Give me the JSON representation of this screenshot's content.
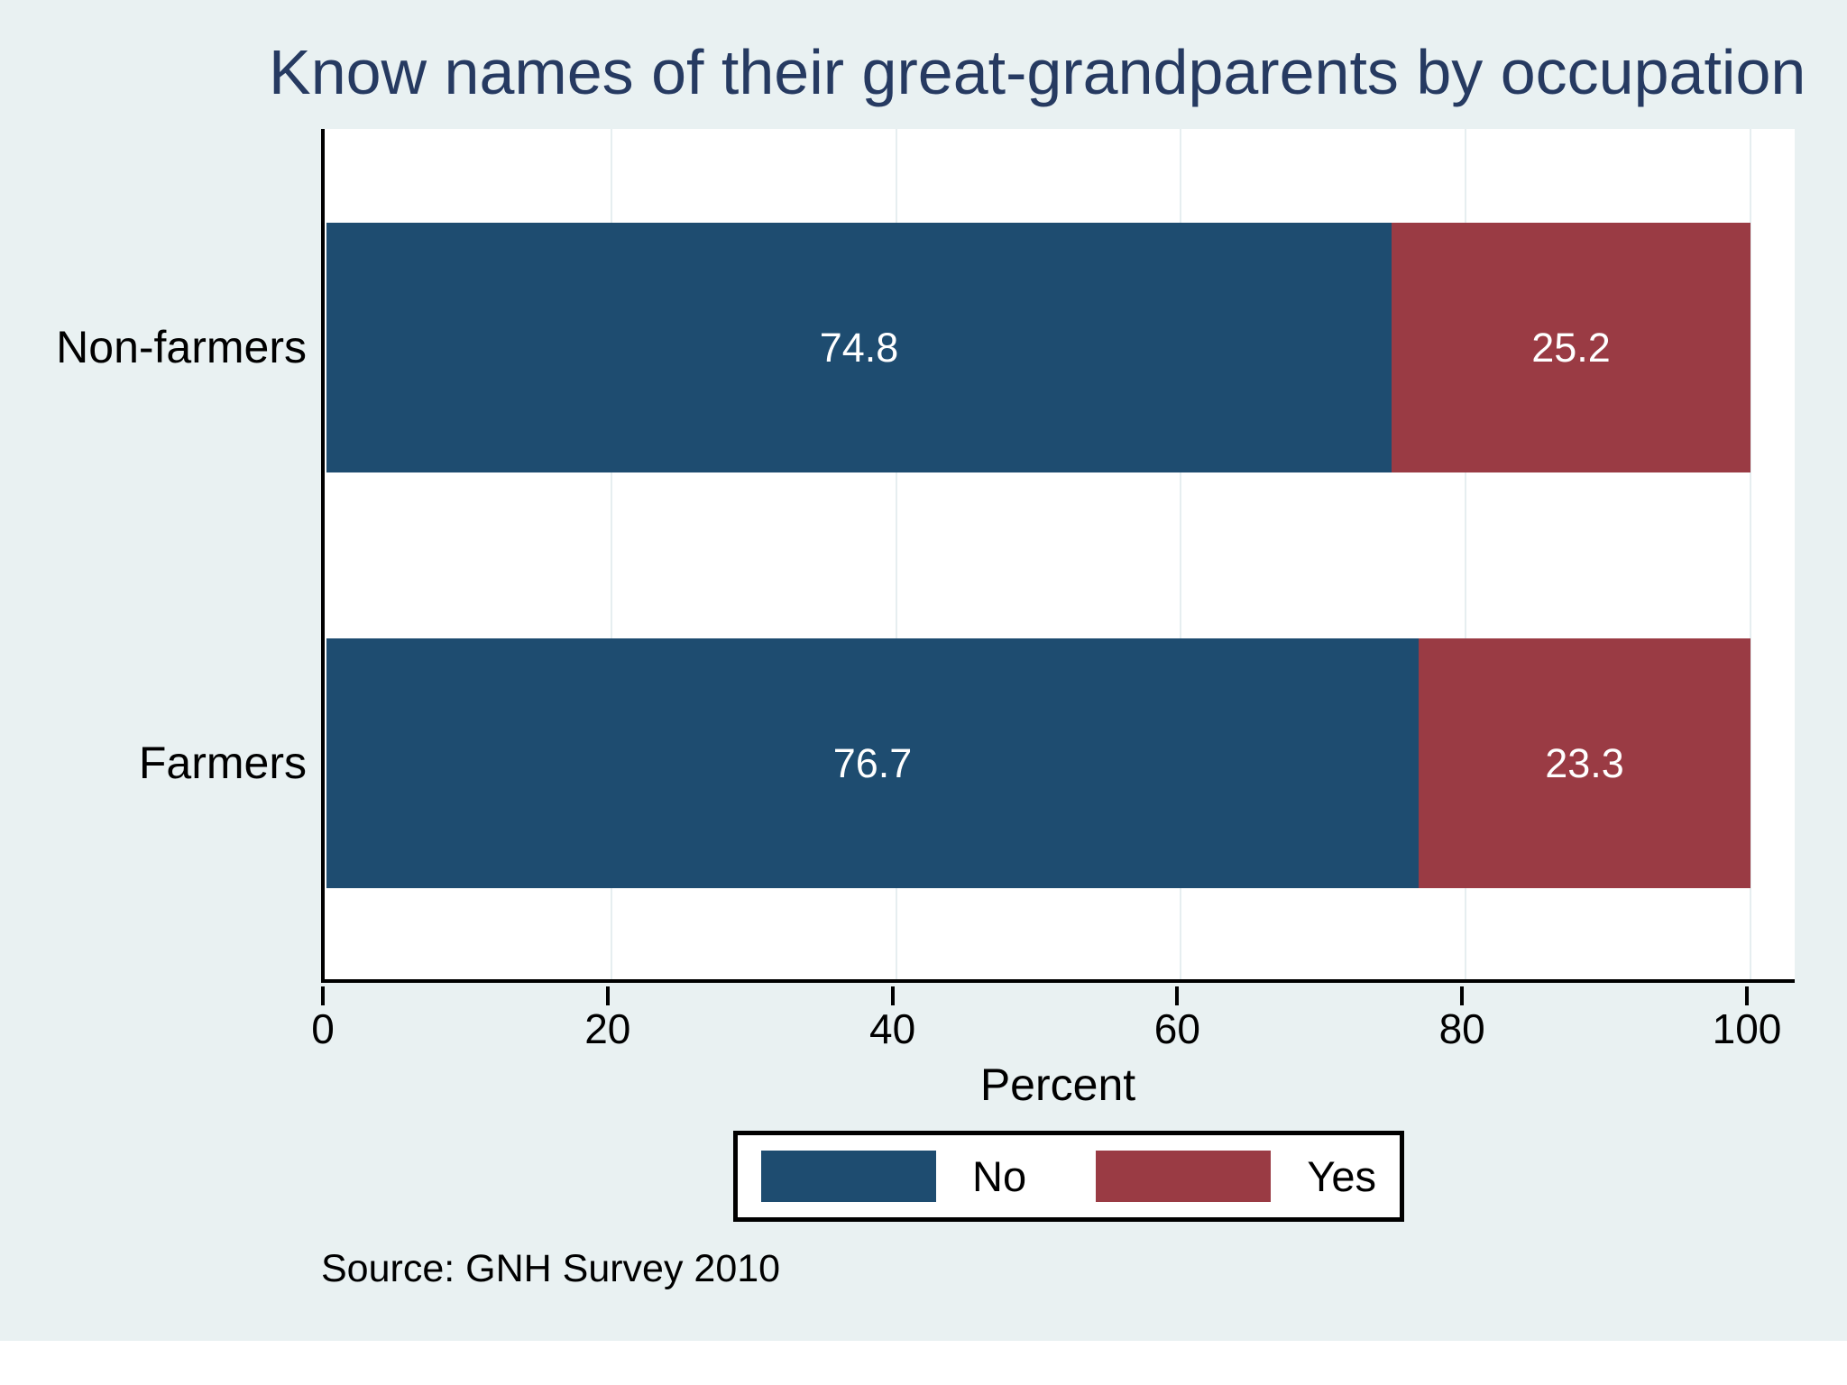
{
  "title": "Know names of their great-grandparents by occupation",
  "source_note": "Source: GNH Survey 2010",
  "colors": {
    "background": "#e9f1f2",
    "plot_background": "#ffffff",
    "grid_line": "#e6eef0",
    "axis_line": "#000000",
    "title_text": "#263a61",
    "value_label_text": "#ffffff",
    "series_no": "#1e4c70",
    "series_yes": "#9a3b44"
  },
  "chart_data": {
    "type": "bar",
    "orientation": "horizontal",
    "stacked": true,
    "title": "Know names of their great-grandparents by occupation",
    "categories": [
      "Non-farmers",
      "Farmers"
    ],
    "series": [
      {
        "name": "No",
        "color": "#1e4c70",
        "values": [
          74.8,
          76.7
        ]
      },
      {
        "name": "Yes",
        "color": "#9a3b44",
        "values": [
          25.2,
          23.3
        ]
      }
    ],
    "xlabel": "Percent",
    "xlim": [
      0,
      100
    ],
    "xticks": [
      0,
      20,
      40,
      60,
      80,
      100
    ],
    "grid": true,
    "value_labels": true,
    "legend_position": "bottom",
    "note": "Source: GNH Survey 2010"
  }
}
